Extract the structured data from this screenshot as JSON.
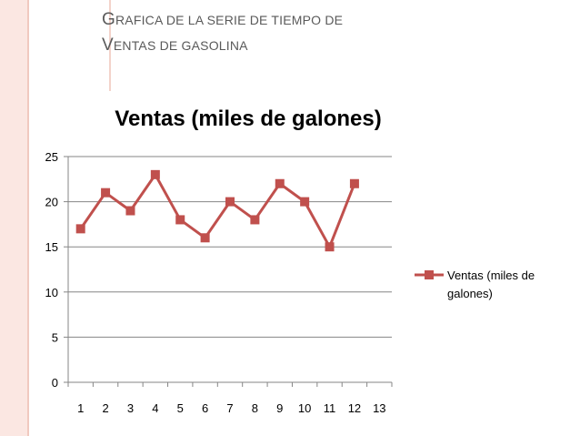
{
  "slide": {
    "title_line1": "Grafica de la serie de tiempo de",
    "title_line2": "ventas de gasolina"
  },
  "colors": {
    "series": "#c0504d",
    "grid": "#868686",
    "left_band": "#fbe7e2"
  },
  "chart_data": {
    "type": "line",
    "title": "Ventas (miles de galones)",
    "categories": [
      "1",
      "2",
      "3",
      "4",
      "5",
      "6",
      "7",
      "8",
      "9",
      "10",
      "11",
      "12",
      "13"
    ],
    "series": [
      {
        "name": "Ventas (miles de galones)",
        "values": [
          17,
          21,
          19,
          23,
          18,
          16,
          20,
          18,
          22,
          20,
          15,
          22,
          null
        ]
      }
    ],
    "y_ticks": [
      0,
      5,
      10,
      15,
      20,
      25
    ],
    "ylim": [
      0,
      25
    ],
    "grid": true,
    "legend_position": "right",
    "marker": "square"
  }
}
